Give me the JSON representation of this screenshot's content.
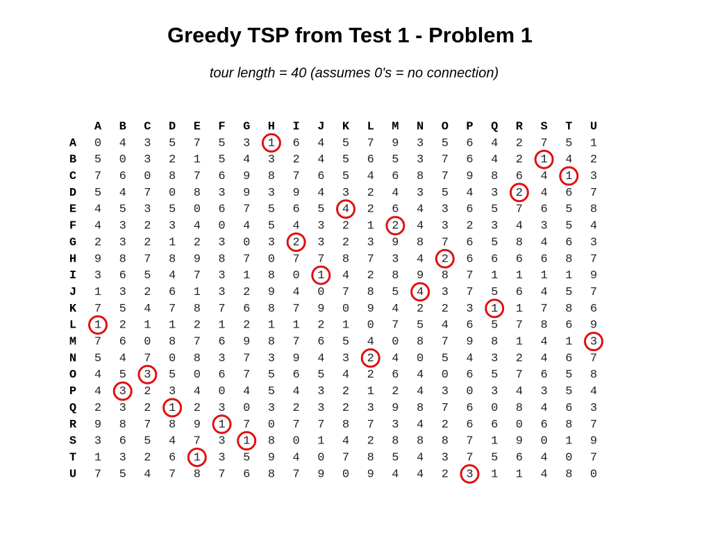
{
  "header": {
    "title": "Greedy TSP from Test 1 - Problem 1",
    "subtitle": "tour length = 40 (assumes 0's = no connection)"
  },
  "table": {
    "columns": [
      "A",
      "B",
      "C",
      "D",
      "E",
      "F",
      "G",
      "H",
      "I",
      "J",
      "K",
      "L",
      "M",
      "N",
      "O",
      "P",
      "Q",
      "R",
      "S",
      "T",
      "U"
    ],
    "row_labels": [
      "A",
      "B",
      "C",
      "D",
      "E",
      "F",
      "G",
      "H",
      "I",
      "J",
      "K",
      "L",
      "M",
      "N",
      "O",
      "P",
      "Q",
      "R",
      "S",
      "T",
      "U"
    ],
    "rows": [
      [
        0,
        4,
        3,
        5,
        7,
        5,
        3,
        1,
        6,
        4,
        5,
        7,
        9,
        3,
        5,
        6,
        4,
        2,
        7,
        5,
        1
      ],
      [
        5,
        0,
        3,
        2,
        1,
        5,
        4,
        3,
        2,
        4,
        5,
        6,
        5,
        3,
        7,
        6,
        4,
        2,
        1,
        4,
        2
      ],
      [
        7,
        6,
        0,
        8,
        7,
        6,
        9,
        8,
        7,
        6,
        5,
        4,
        6,
        8,
        7,
        9,
        8,
        6,
        4,
        1,
        3
      ],
      [
        5,
        4,
        7,
        0,
        8,
        3,
        9,
        3,
        9,
        4,
        3,
        2,
        4,
        3,
        5,
        4,
        3,
        2,
        4,
        6,
        7
      ],
      [
        4,
        5,
        3,
        5,
        0,
        6,
        7,
        5,
        6,
        5,
        4,
        2,
        6,
        4,
        3,
        6,
        5,
        7,
        6,
        5,
        8
      ],
      [
        4,
        3,
        2,
        3,
        4,
        0,
        4,
        5,
        4,
        3,
        2,
        1,
        2,
        4,
        3,
        2,
        3,
        4,
        3,
        5,
        4
      ],
      [
        2,
        3,
        2,
        1,
        2,
        3,
        0,
        3,
        2,
        3,
        2,
        3,
        9,
        8,
        7,
        6,
        5,
        8,
        4,
        6,
        3
      ],
      [
        9,
        8,
        7,
        8,
        9,
        8,
        7,
        0,
        7,
        7,
        8,
        7,
        3,
        4,
        2,
        6,
        6,
        6,
        6,
        8,
        7
      ],
      [
        3,
        6,
        5,
        4,
        7,
        3,
        1,
        8,
        0,
        1,
        4,
        2,
        8,
        9,
        8,
        7,
        1,
        1,
        1,
        1,
        9
      ],
      [
        1,
        3,
        2,
        6,
        1,
        3,
        2,
        9,
        4,
        0,
        7,
        8,
        5,
        4,
        3,
        7,
        5,
        6,
        4,
        5,
        7
      ],
      [
        7,
        5,
        4,
        7,
        8,
        7,
        6,
        8,
        7,
        9,
        0,
        9,
        4,
        2,
        2,
        3,
        1,
        1,
        7,
        8,
        6
      ],
      [
        1,
        2,
        1,
        1,
        2,
        1,
        2,
        1,
        1,
        2,
        1,
        0,
        7,
        5,
        4,
        6,
        5,
        7,
        8,
        6,
        9
      ],
      [
        7,
        6,
        0,
        8,
        7,
        6,
        9,
        8,
        7,
        6,
        5,
        4,
        0,
        8,
        7,
        9,
        8,
        1,
        4,
        1,
        3
      ],
      [
        5,
        4,
        7,
        0,
        8,
        3,
        7,
        3,
        9,
        4,
        3,
        2,
        4,
        0,
        5,
        4,
        3,
        2,
        4,
        6,
        7
      ],
      [
        4,
        5,
        3,
        5,
        0,
        6,
        7,
        5,
        6,
        5,
        4,
        2,
        6,
        4,
        0,
        6,
        5,
        7,
        6,
        5,
        8
      ],
      [
        4,
        3,
        2,
        3,
        4,
        0,
        4,
        5,
        4,
        3,
        2,
        1,
        2,
        4,
        3,
        0,
        3,
        4,
        3,
        5,
        4
      ],
      [
        2,
        3,
        2,
        1,
        2,
        3,
        0,
        3,
        2,
        3,
        2,
        3,
        9,
        8,
        7,
        6,
        0,
        8,
        4,
        6,
        3
      ],
      [
        9,
        8,
        7,
        8,
        9,
        1,
        7,
        0,
        7,
        7,
        8,
        7,
        3,
        4,
        2,
        6,
        6,
        0,
        6,
        8,
        7
      ],
      [
        3,
        6,
        5,
        4,
        7,
        3,
        1,
        8,
        0,
        1,
        4,
        2,
        8,
        8,
        8,
        7,
        1,
        9,
        0,
        1,
        9
      ],
      [
        1,
        3,
        2,
        6,
        1,
        3,
        5,
        9,
        4,
        0,
        7,
        8,
        5,
        4,
        3,
        7,
        5,
        6,
        4,
        0,
        7
      ],
      [
        7,
        5,
        4,
        7,
        8,
        7,
        6,
        8,
        7,
        9,
        0,
        9,
        4,
        4,
        2,
        3,
        1,
        1,
        4,
        8,
        0
      ]
    ],
    "circled_column": [
      7,
      18,
      19,
      17,
      10,
      12,
      8,
      14,
      9,
      13,
      16,
      0,
      20,
      11,
      2,
      1,
      3,
      5,
      6,
      4,
      15
    ],
    "circle_color": "#e01010"
  }
}
